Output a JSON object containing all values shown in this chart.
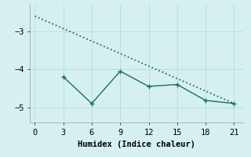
{
  "line1_x": [
    0,
    21
  ],
  "line1_y": [
    -2.6,
    -4.9
  ],
  "line2_x": [
    3,
    6,
    9,
    12,
    15,
    18,
    21
  ],
  "line2_y": [
    -4.2,
    -4.9,
    -4.05,
    -4.45,
    -4.4,
    -4.82,
    -4.9
  ],
  "line_color": "#1a6b6b",
  "bg_color": "#d6f0f0",
  "grid_color": "#b8e0e0",
  "xlabel": "Humidex (Indice chaleur)",
  "xlim": [
    -0.5,
    22
  ],
  "ylim": [
    -5.4,
    -2.3
  ],
  "xticks": [
    0,
    3,
    6,
    9,
    12,
    15,
    18,
    21
  ],
  "yticks": [
    -5,
    -4,
    -3
  ],
  "font_family": "monospace"
}
